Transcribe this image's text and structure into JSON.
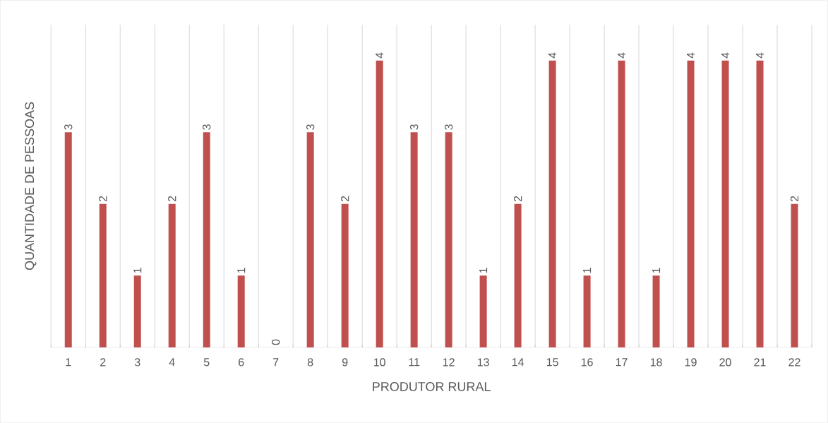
{
  "chart_data": {
    "type": "bar",
    "xlabel": "PRODUTOR RURAL",
    "ylabel": "QUANTIDADE DE PESSOAS",
    "categories": [
      "1",
      "2",
      "3",
      "4",
      "5",
      "6",
      "7",
      "8",
      "9",
      "10",
      "11",
      "12",
      "13",
      "14",
      "15",
      "16",
      "17",
      "18",
      "19",
      "20",
      "21",
      "22"
    ],
    "values": [
      3,
      2,
      1,
      2,
      3,
      1,
      0,
      3,
      2,
      4,
      3,
      3,
      1,
      2,
      4,
      1,
      4,
      1,
      4,
      4,
      4,
      2
    ],
    "color": "#c0504d",
    "ylim": [
      0,
      4.5
    ],
    "data_labels": true,
    "grid": "x",
    "tick_labels": "x"
  }
}
